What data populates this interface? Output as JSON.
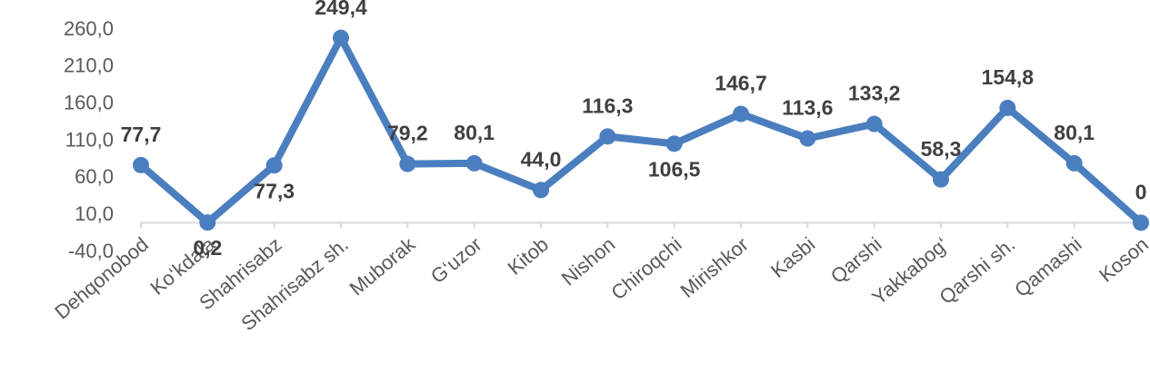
{
  "chart_data": {
    "type": "line",
    "categories": [
      "Dehqonobod",
      "Ko‘kdala",
      "Shahrisabz",
      "Shahrisabz sh.",
      "Muborak",
      "G‘uzor",
      "Kitob",
      "Nishon",
      "Chiroqchi",
      "Mirishkor",
      "Kasbi",
      "Qarshi",
      "Yakkabog‘",
      "Qarshi sh.",
      "Qamashi",
      "Koson"
    ],
    "series": [
      {
        "color": "#4a7ebf",
        "values": [
          77.7,
          0.2,
          77.3,
          249.4,
          79.2,
          80.1,
          44.0,
          116.3,
          106.5,
          146.7,
          113.6,
          133.2,
          58.3,
          154.8,
          80.1,
          0
        ],
        "value_labels": [
          "77,7",
          "0,2",
          "77,3",
          "249,4",
          "79,2",
          "80,1",
          "44,0",
          "116,3",
          "106,5",
          "146,7",
          "113,6",
          "133,2",
          "58,3",
          "154,8",
          "80,1",
          "0"
        ]
      }
    ],
    "ylim": [
      -40,
      260
    ],
    "yticks": [
      {
        "value": -40,
        "label": "-40,0"
      },
      {
        "value": 10,
        "label": "10,0"
      },
      {
        "value": 60,
        "label": "60,0"
      },
      {
        "value": 110,
        "label": "110,0"
      },
      {
        "value": 160,
        "label": "160,0"
      },
      {
        "value": 210,
        "label": "210,0"
      },
      {
        "value": 260,
        "label": "260,0"
      }
    ]
  }
}
